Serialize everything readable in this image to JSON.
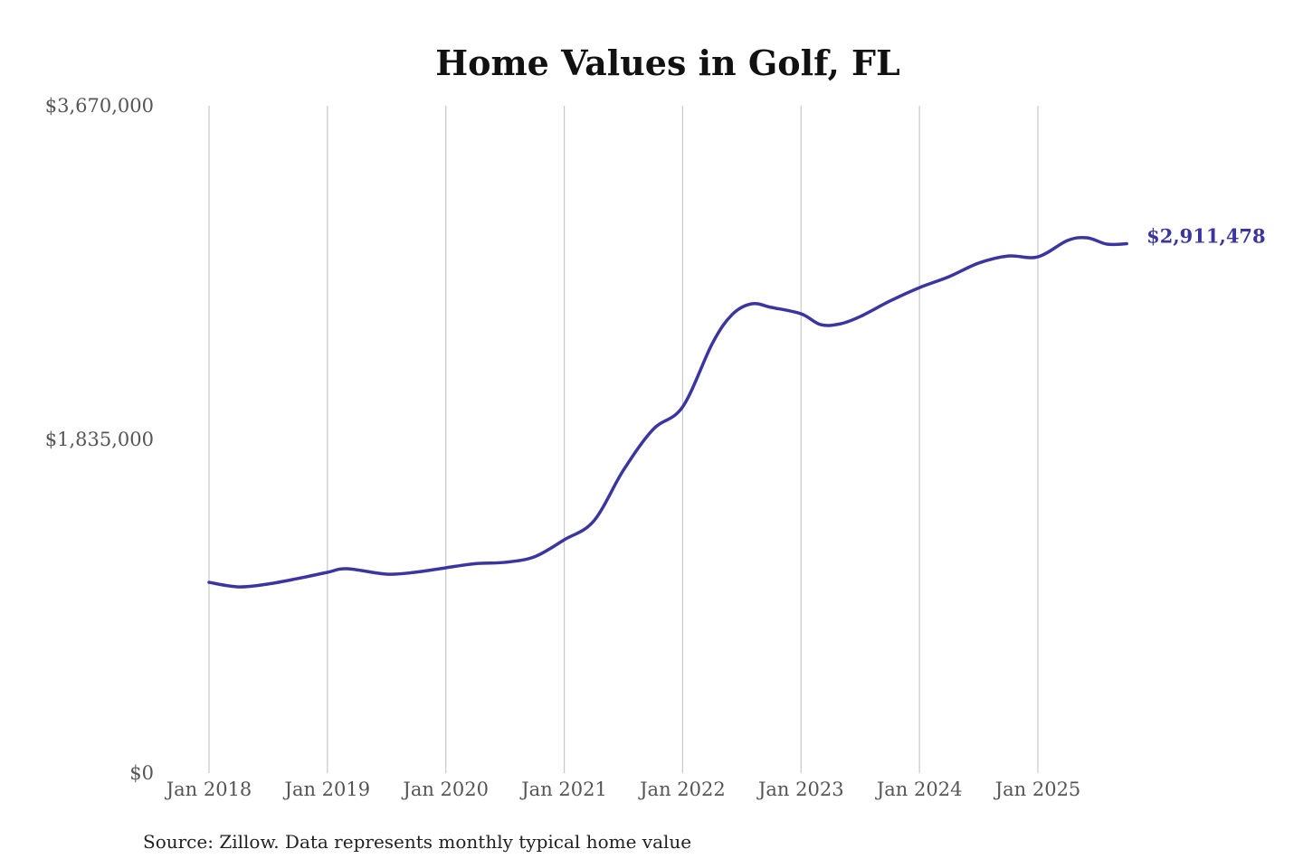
{
  "chart_data": {
    "type": "line",
    "title": "Home Values in Golf, FL",
    "xlabel": "",
    "ylabel": "",
    "ylim": [
      0,
      3670000
    ],
    "y_ticks": [
      {
        "value": 0,
        "label": "$0"
      },
      {
        "value": 1835000,
        "label": "$1,835,000"
      },
      {
        "value": 3670000,
        "label": "$3,670,000"
      }
    ],
    "x_ticks": [
      {
        "date": "2018-01",
        "label": "Jan 2018"
      },
      {
        "date": "2019-01",
        "label": "Jan 2019"
      },
      {
        "date": "2020-01",
        "label": "Jan 2020"
      },
      {
        "date": "2021-01",
        "label": "Jan 2021"
      },
      {
        "date": "2022-01",
        "label": "Jan 2022"
      },
      {
        "date": "2023-01",
        "label": "Jan 2023"
      },
      {
        "date": "2024-01",
        "label": "Jan 2024"
      },
      {
        "date": "2025-01",
        "label": "Jan 2025"
      }
    ],
    "grid": "vertical",
    "line_color": "#3a35a0",
    "series": [
      {
        "points": [
          [
            "2018-01",
            1049000
          ],
          [
            "2018-04",
            1024000
          ],
          [
            "2018-07",
            1040000
          ],
          [
            "2018-10",
            1070000
          ],
          [
            "2019-01",
            1104000
          ],
          [
            "2019-03",
            1124000
          ],
          [
            "2019-07",
            1094000
          ],
          [
            "2019-10",
            1105000
          ],
          [
            "2020-01",
            1129000
          ],
          [
            "2020-04",
            1152000
          ],
          [
            "2020-07",
            1159000
          ],
          [
            "2020-10",
            1190000
          ],
          [
            "2021-01",
            1283000
          ],
          [
            "2021-04",
            1387000
          ],
          [
            "2021-07",
            1666000
          ],
          [
            "2021-10",
            1890000
          ],
          [
            "2022-01",
            2014000
          ],
          [
            "2022-04",
            2362000
          ],
          [
            "2022-06",
            2521000
          ],
          [
            "2022-08",
            2581000
          ],
          [
            "2022-10",
            2561000
          ],
          [
            "2023-01",
            2526000
          ],
          [
            "2023-03",
            2466000
          ],
          [
            "2023-05",
            2471000
          ],
          [
            "2023-07",
            2511000
          ],
          [
            "2023-10",
            2596000
          ],
          [
            "2024-01",
            2670000
          ],
          [
            "2024-04",
            2730000
          ],
          [
            "2024-07",
            2805000
          ],
          [
            "2024-10",
            2844000
          ],
          [
            "2025-01",
            2839000
          ],
          [
            "2025-04",
            2929000
          ],
          [
            "2025-06",
            2944000
          ],
          [
            "2025-08",
            2909000
          ],
          [
            "2025-10",
            2911478
          ]
        ]
      }
    ],
    "end_label": "$2,911,478",
    "source": "Source: Zillow. Data represents monthly typical home value"
  }
}
